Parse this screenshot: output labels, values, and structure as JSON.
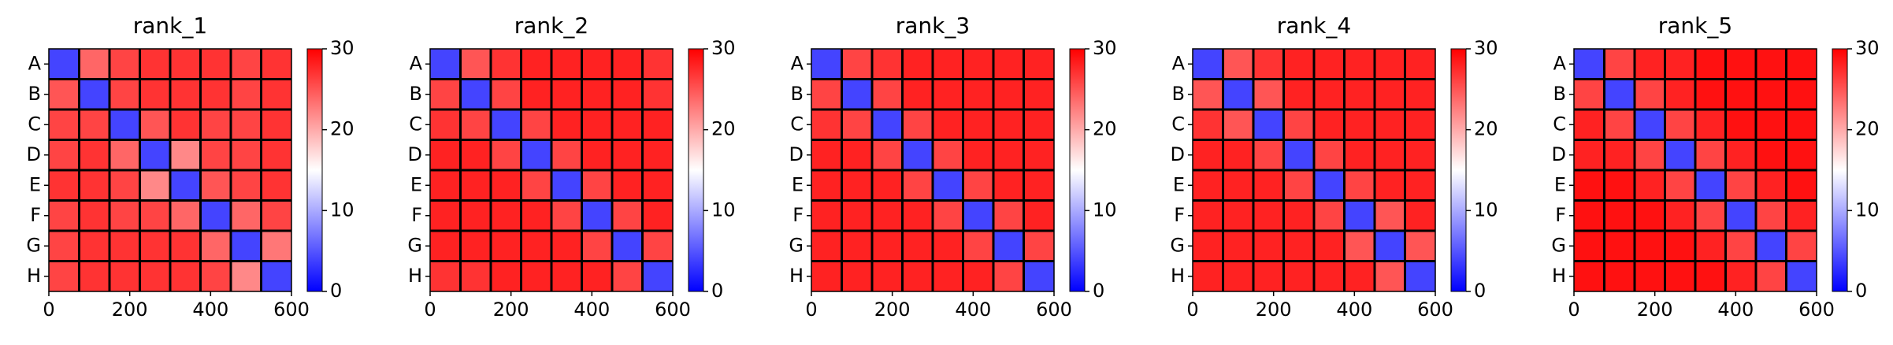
{
  "chart_data": [
    {
      "type": "heatmap",
      "title": "rank_1",
      "categories": [
        "A",
        "B",
        "C",
        "D",
        "E",
        "F",
        "G",
        "H"
      ],
      "xlim": [
        0,
        600
      ],
      "xticks": [
        0,
        200,
        400,
        600
      ],
      "clim": [
        0,
        30
      ],
      "cticks": [
        0,
        10,
        20,
        30
      ],
      "colormap": [
        "#0000ff",
        "#ffffff",
        "#ff0000"
      ],
      "values": [
        [
          4,
          24,
          26,
          27,
          27,
          27,
          26,
          27
        ],
        [
          25,
          4,
          26,
          27,
          27,
          27,
          26,
          27
        ],
        [
          26,
          26,
          4,
          25,
          27,
          26,
          26,
          27
        ],
        [
          26,
          27,
          24,
          4,
          22,
          26,
          26,
          27
        ],
        [
          27,
          27,
          26,
          22,
          4,
          25,
          26,
          27
        ],
        [
          26,
          27,
          26,
          26,
          24,
          4,
          24,
          26
        ],
        [
          26,
          27,
          27,
          27,
          27,
          24,
          4,
          23
        ],
        [
          26,
          27,
          27,
          27,
          27,
          26,
          22,
          4
        ]
      ]
    },
    {
      "type": "heatmap",
      "title": "rank_2",
      "categories": [
        "A",
        "B",
        "C",
        "D",
        "E",
        "F",
        "G",
        "H"
      ],
      "xlim": [
        0,
        600
      ],
      "xticks": [
        0,
        200,
        400,
        600
      ],
      "clim": [
        0,
        30
      ],
      "cticks": [
        0,
        10,
        20,
        30
      ],
      "colormap": [
        "#0000ff",
        "#ffffff",
        "#ff0000"
      ],
      "values": [
        [
          4,
          25,
          27,
          28,
          28,
          28,
          28,
          27
        ],
        [
          26,
          4,
          26,
          28,
          28,
          28,
          28,
          27
        ],
        [
          27,
          26,
          4,
          26,
          28,
          28,
          28,
          28
        ],
        [
          28,
          28,
          26,
          4,
          26,
          28,
          28,
          28
        ],
        [
          28,
          28,
          28,
          26,
          4,
          26,
          28,
          28
        ],
        [
          28,
          28,
          28,
          28,
          26,
          4,
          26,
          28
        ],
        [
          28,
          28,
          28,
          28,
          28,
          26,
          4,
          26
        ],
        [
          27,
          27,
          28,
          28,
          28,
          28,
          26,
          4
        ]
      ]
    },
    {
      "type": "heatmap",
      "title": "rank_3",
      "categories": [
        "A",
        "B",
        "C",
        "D",
        "E",
        "F",
        "G",
        "H"
      ],
      "xlim": [
        0,
        600
      ],
      "xticks": [
        0,
        200,
        400,
        600
      ],
      "clim": [
        0,
        30
      ],
      "cticks": [
        0,
        10,
        20,
        30
      ],
      "colormap": [
        "#0000ff",
        "#ffffff",
        "#ff0000"
      ],
      "values": [
        [
          4,
          26,
          27,
          28,
          28,
          28,
          28,
          28
        ],
        [
          26,
          4,
          26,
          28,
          28,
          28,
          28,
          28
        ],
        [
          27,
          26,
          4,
          26,
          28,
          28,
          28,
          28
        ],
        [
          28,
          28,
          26,
          4,
          26,
          28,
          28,
          28
        ],
        [
          28,
          28,
          28,
          26,
          4,
          26,
          28,
          28
        ],
        [
          28,
          28,
          28,
          28,
          26,
          4,
          26,
          28
        ],
        [
          28,
          28,
          28,
          28,
          28,
          26,
          4,
          26
        ],
        [
          28,
          28,
          28,
          28,
          28,
          28,
          26,
          4
        ]
      ]
    },
    {
      "type": "heatmap",
      "title": "rank_4",
      "categories": [
        "A",
        "B",
        "C",
        "D",
        "E",
        "F",
        "G",
        "H"
      ],
      "xlim": [
        0,
        600
      ],
      "xticks": [
        0,
        200,
        400,
        600
      ],
      "clim": [
        0,
        30
      ],
      "cticks": [
        0,
        10,
        20,
        30
      ],
      "colormap": [
        "#0000ff",
        "#ffffff",
        "#ff0000"
      ],
      "values": [
        [
          4,
          25,
          27,
          28,
          28,
          28,
          28,
          28
        ],
        [
          25,
          4,
          25,
          28,
          28,
          28,
          28,
          28
        ],
        [
          27,
          25,
          4,
          26,
          28,
          28,
          28,
          28
        ],
        [
          28,
          28,
          26,
          4,
          26,
          28,
          28,
          28
        ],
        [
          28,
          28,
          28,
          26,
          4,
          26,
          28,
          28
        ],
        [
          28,
          28,
          28,
          28,
          26,
          4,
          25,
          28
        ],
        [
          28,
          28,
          28,
          28,
          28,
          25,
          4,
          25
        ],
        [
          28,
          28,
          28,
          28,
          28,
          28,
          25,
          4
        ]
      ]
    },
    {
      "type": "heatmap",
      "title": "rank_5",
      "categories": [
        "A",
        "B",
        "C",
        "D",
        "E",
        "F",
        "G",
        "H"
      ],
      "xlim": [
        0,
        600
      ],
      "xticks": [
        0,
        200,
        400,
        600
      ],
      "clim": [
        0,
        30
      ],
      "cticks": [
        0,
        10,
        20,
        30
      ],
      "colormap": [
        "#0000ff",
        "#ffffff",
        "#ff0000"
      ],
      "values": [
        [
          4,
          26,
          28,
          28,
          29,
          29,
          29,
          29
        ],
        [
          26,
          4,
          26,
          28,
          29,
          29,
          29,
          29
        ],
        [
          28,
          26,
          4,
          26,
          28,
          29,
          29,
          29
        ],
        [
          28,
          28,
          26,
          4,
          26,
          28,
          29,
          29
        ],
        [
          29,
          29,
          28,
          26,
          4,
          26,
          28,
          29
        ],
        [
          29,
          29,
          29,
          28,
          26,
          4,
          26,
          28
        ],
        [
          29,
          29,
          29,
          29,
          28,
          26,
          4,
          26
        ],
        [
          29,
          29,
          29,
          29,
          29,
          28,
          26,
          4
        ]
      ]
    }
  ]
}
